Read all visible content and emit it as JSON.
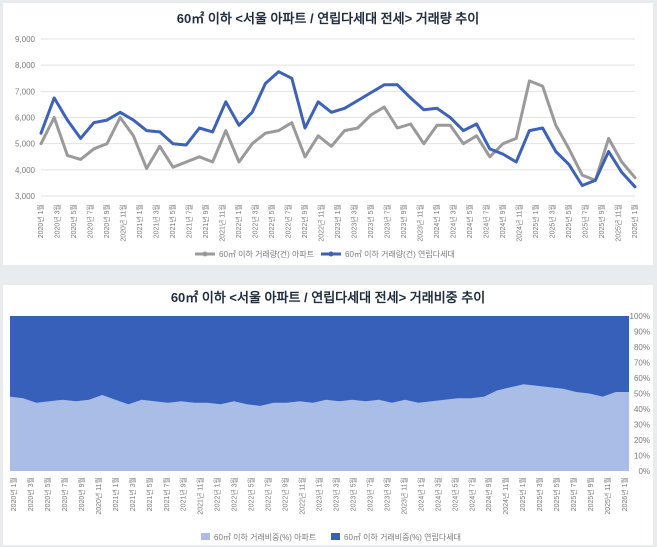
{
  "colors": {
    "apartment_line": "#9a9a9a",
    "villa_line": "#3d62b8",
    "apartment_area": "#a9bde6",
    "villa_area": "#3660b9",
    "grid": "#e3e3e3",
    "axis_text": "#7b7b7b"
  },
  "chart_data": [
    {
      "type": "line",
      "title": "60㎡ 이하 <서울 아파트 / 연립다세대 전세> 거래량 추이",
      "ylim": [
        3000,
        9000
      ],
      "y_ticks": [
        "3,000",
        "4,000",
        "5,000",
        "6,000",
        "7,000",
        "8,000",
        "9,000"
      ],
      "grid": true,
      "legend_position": "bottom",
      "x_tick_labels": [
        "2020년 1월",
        "2020년 3월",
        "2020년 5월",
        "2020년 7월",
        "2020년 9월",
        "2020년 11월",
        "2021년 1월",
        "2021년 3월",
        "2021년 5월",
        "2021년 7월",
        "2021년 9월",
        "2021년 11월",
        "2022년 1월",
        "2022년 3월",
        "2022년 5월",
        "2022년 7월",
        "2022년 9월",
        "2022년 11월",
        "2023년 1월",
        "2023년 3월",
        "2023년 5월",
        "2023년 7월",
        "2023년 9월",
        "2023년 11월",
        "2024년 1월",
        "2024년 3월",
        "2024년 5월",
        "2024년 7월",
        "2024년 9월",
        "2024년 11월",
        "2025년 1월",
        "2025년 3월",
        "2025년 5월",
        "2025년 7월",
        "2025년 9월",
        "2025년 11월",
        "2026년 1월"
      ],
      "series": [
        {
          "name": "60㎡ 이하 거래량(건) 아파트",
          "values": [
            5000,
            6000,
            4550,
            4400,
            4800,
            5000,
            6000,
            5300,
            4050,
            4900,
            4100,
            4300,
            4500,
            4300,
            5500,
            4300,
            5000,
            5400,
            5500,
            5800,
            4500,
            5300,
            4900,
            5500,
            5600,
            6100,
            6400,
            5600,
            5750,
            5000,
            5700,
            5700,
            5000,
            5300,
            4500,
            5000,
            5200,
            7400,
            7200,
            5700,
            4800,
            3800,
            3600,
            5200,
            4300,
            3700
          ]
        },
        {
          "name": "60㎡ 이하 거래량(건) 연립다세대",
          "values": [
            5400,
            6750,
            5900,
            5200,
            5800,
            5900,
            6200,
            5900,
            5500,
            5450,
            5000,
            4950,
            5600,
            5450,
            6600,
            5700,
            6200,
            7300,
            7750,
            7500,
            5600,
            6600,
            6200,
            6350,
            6650,
            6950,
            7250,
            7250,
            6750,
            6300,
            6350,
            6000,
            5500,
            5750,
            4800,
            4600,
            4300,
            5500,
            5600,
            4700,
            4200,
            3400,
            3600,
            4700,
            3900,
            3350
          ]
        }
      ]
    },
    {
      "type": "area",
      "title": "60㎡ 이하 <서울 아파트 / 연립다세대 전세> 거래비중 추이",
      "ylim": [
        0,
        100
      ],
      "y_ticks": [
        "0%",
        "10%",
        "20%",
        "30%",
        "40%",
        "50%",
        "60%",
        "70%",
        "80%",
        "90%",
        "100%"
      ],
      "stacked_percent": true,
      "legend_position": "bottom",
      "x_tick_labels": [
        "2020년 1월",
        "2020년 3월",
        "2020년 5월",
        "2020년 7월",
        "2020년 9월",
        "2020년 11월",
        "2021년 1월",
        "2021년 3월",
        "2021년 5월",
        "2021년 7월",
        "2021년 9월",
        "2021년 11월",
        "2022년 1월",
        "2022년 3월",
        "2022년 5월",
        "2022년 7월",
        "2022년 9월",
        "2022년 11월",
        "2023년 1월",
        "2023년 3월",
        "2023년 5월",
        "2023년 7월",
        "2023년 9월",
        "2023년 11월",
        "2024년 1월",
        "2024년 3월",
        "2024년 5월",
        "2024년 7월",
        "2024년 9월",
        "2024년 11월",
        "2025년 1월",
        "2025년 3월",
        "2025년 5월",
        "2025년 7월",
        "2025년 9월",
        "2025년 11월",
        "2026년 1월"
      ],
      "series": [
        {
          "name": "60㎡ 이하 거래비중(%) 아파트",
          "values": [
            48,
            47,
            44,
            45,
            46,
            45,
            46,
            49,
            46,
            43,
            46,
            45,
            44,
            45,
            44,
            44,
            43,
            45,
            43,
            42,
            44,
            44,
            45,
            44,
            46,
            45,
            46,
            45,
            46,
            44,
            46,
            44,
            45,
            46,
            47,
            47,
            48,
            52,
            54,
            56,
            55,
            54,
            53,
            51,
            50,
            48,
            51,
            51
          ]
        },
        {
          "name": "60㎡ 이하 거래비중(%) 연립다세대",
          "values": [
            52,
            53,
            56,
            55,
            54,
            55,
            54,
            51,
            54,
            57,
            54,
            55,
            56,
            55,
            56,
            56,
            57,
            55,
            57,
            58,
            56,
            56,
            55,
            56,
            54,
            55,
            54,
            55,
            54,
            56,
            54,
            56,
            55,
            54,
            53,
            53,
            52,
            48,
            46,
            44,
            45,
            46,
            47,
            49,
            50,
            52,
            49,
            49
          ]
        }
      ]
    }
  ]
}
